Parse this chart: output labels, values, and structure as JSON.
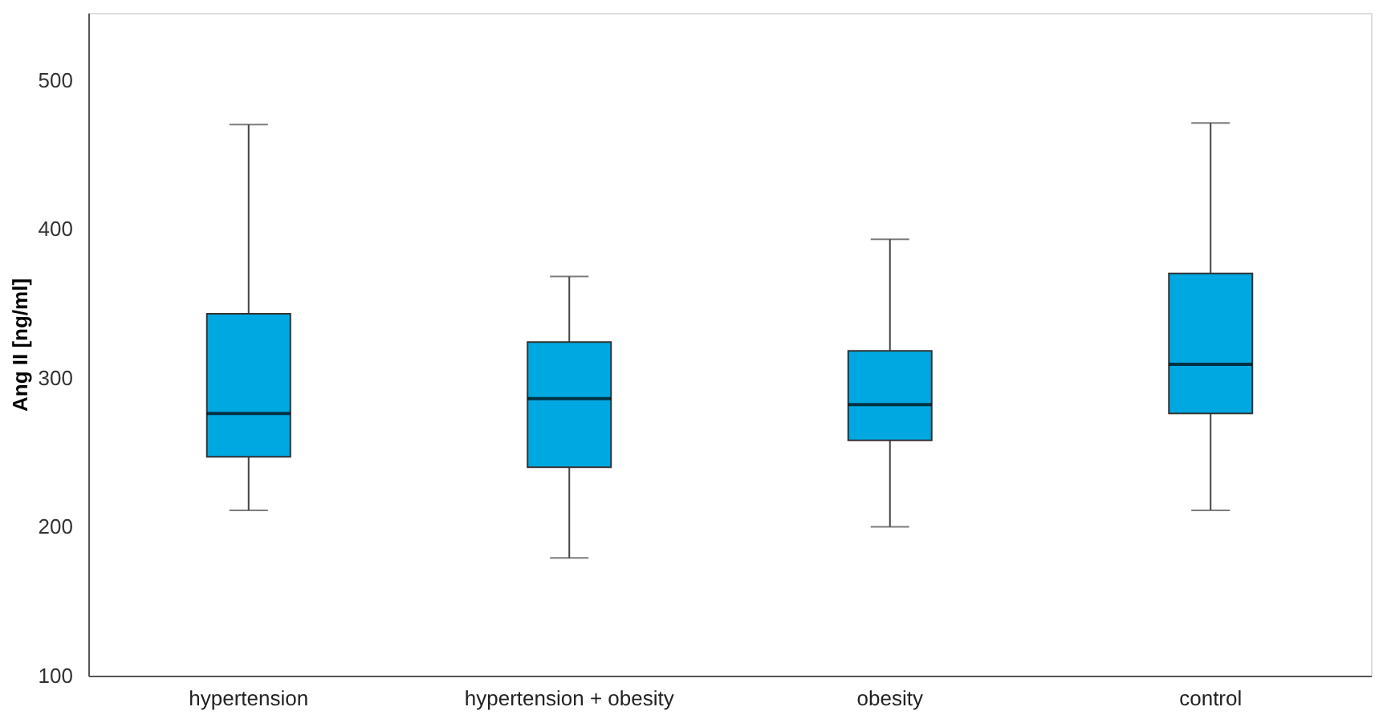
{
  "chart_data": {
    "type": "box",
    "ylabel": "Ang II [ng/ml]",
    "categories": [
      "hypertension",
      "hypertension + obesity",
      "obesity",
      "control"
    ],
    "boxes": [
      {
        "low": 211,
        "q1": 247,
        "median": 276,
        "q3": 343,
        "high": 470
      },
      {
        "low": 179,
        "q1": 240,
        "median": 286,
        "q3": 324,
        "high": 368
      },
      {
        "low": 200,
        "q1": 258,
        "median": 282,
        "q3": 318,
        "high": 393
      },
      {
        "low": 211,
        "q1": 276,
        "median": 309,
        "q3": 370,
        "high": 471
      }
    ],
    "color": "#00a8e1",
    "ylim": [
      100,
      545
    ],
    "yticks": [
      100,
      200,
      300,
      400,
      500
    ],
    "grid": false
  }
}
